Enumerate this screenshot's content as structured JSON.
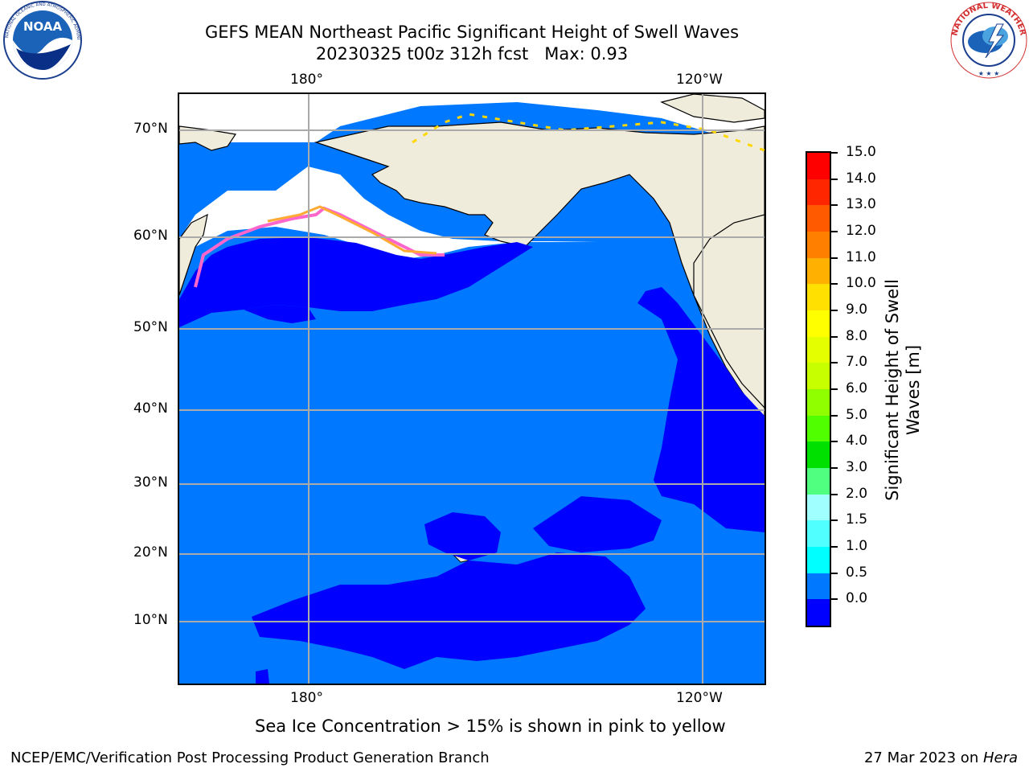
{
  "header": {
    "title": "GEFS MEAN Northeast Pacific Significant Height of Swell Waves",
    "subtitle": "20230325 t00z 312h fcst   Max: 0.93"
  },
  "logos": {
    "left": {
      "name": "NOAA",
      "ring_text": "NATIONAL OCEANIC AND ATMOSPHERIC ADMINISTRATION · U.S. DEPARTMENT OF COMMERCE"
    },
    "right": {
      "name": "NATIONAL WEATHER SERVICE"
    }
  },
  "map": {
    "lon_labels": [
      "180°",
      "120°W"
    ],
    "lat_labels": [
      "70°N",
      "60°N",
      "50°N",
      "40°N",
      "30°N",
      "20°N",
      "10°N"
    ],
    "colors": {
      "land": "#efecdc",
      "ocean_0_0_5": "#0000ff",
      "ocean_0_5_1_0": "#0078ff",
      "ice_edge": [
        "#ff66cc",
        "#ffaa33",
        "#ffd700"
      ],
      "grid": "#aaaaaa"
    }
  },
  "colorbar": {
    "label": "Significant Height of Swell Waves [m]",
    "label_lines": [
      "Significant Height of Swell",
      "Waves [m]"
    ],
    "ticks": [
      "15.0",
      "14.0",
      "13.0",
      "12.0",
      "11.0",
      "10.0",
      "9.0",
      "8.0",
      "7.0",
      "6.0",
      "5.0",
      "4.0",
      "3.0",
      "2.0",
      "1.5",
      "1.0",
      "0.5",
      "0.0"
    ],
    "segment_colors_top_to_bottom": [
      "#ff0000",
      "#ff2600",
      "#ff5a00",
      "#ff7f00",
      "#ffb000",
      "#ffe000",
      "#ffff00",
      "#e4ff00",
      "#c8ff00",
      "#90ff00",
      "#50ff00",
      "#00e000",
      "#50ff80",
      "#a0ffff",
      "#50ffff",
      "#00ffff",
      "#0078ff",
      "#0000ff"
    ]
  },
  "caption": "Sea Ice Concentration > 15% is shown in pink to yellow",
  "footer": {
    "left": "NCEP/EMC/Verification Post Processing Product Generation Branch",
    "right_prefix": "27 Mar 2023 on ",
    "right_host": "Hera"
  }
}
